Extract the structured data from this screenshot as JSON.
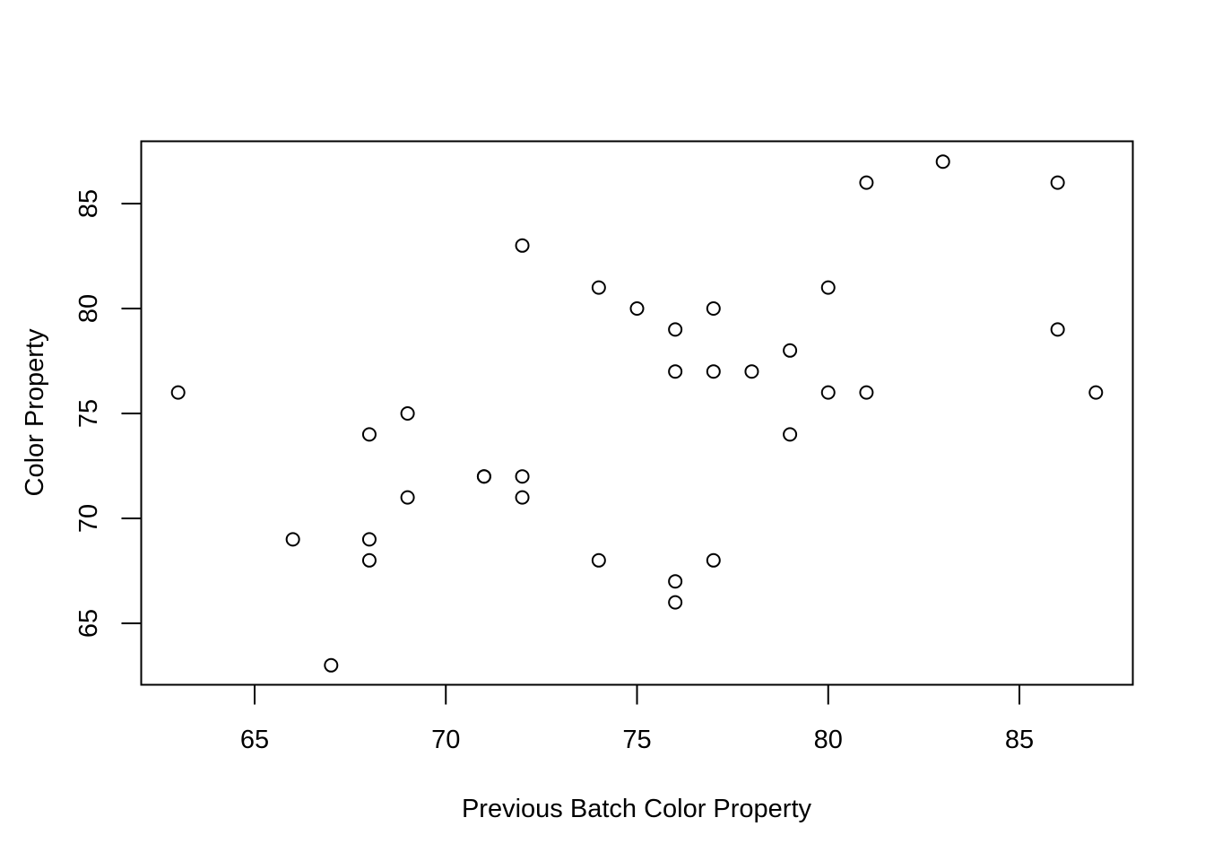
{
  "chart_data": {
    "type": "scatter",
    "title": "",
    "xlabel": "Previous Batch Color Property",
    "ylabel": "Color Property",
    "xlim": [
      62,
      88
    ],
    "ylim": [
      62,
      88
    ],
    "x_ticks": [
      65,
      70,
      75,
      80,
      85
    ],
    "y_ticks": [
      65,
      70,
      75,
      80,
      85
    ],
    "x_tick_labels": [
      "65",
      "70",
      "75",
      "80",
      "85"
    ],
    "y_tick_labels": [
      "65",
      "70",
      "75",
      "80",
      "85"
    ],
    "grid": false,
    "marker": "open-circle",
    "marker_color": "#000000",
    "points": [
      [
        63,
        76
      ],
      [
        66,
        69
      ],
      [
        67,
        63
      ],
      [
        68,
        74
      ],
      [
        68,
        69
      ],
      [
        68,
        68
      ],
      [
        69,
        75
      ],
      [
        69,
        71
      ],
      [
        71,
        72
      ],
      [
        71,
        72
      ],
      [
        72,
        83
      ],
      [
        72,
        72
      ],
      [
        72,
        71
      ],
      [
        74,
        81
      ],
      [
        74,
        68
      ],
      [
        75,
        80
      ],
      [
        76,
        79
      ],
      [
        76,
        77
      ],
      [
        76,
        67
      ],
      [
        76,
        66
      ],
      [
        77,
        80
      ],
      [
        77,
        77
      ],
      [
        77,
        68
      ],
      [
        78,
        77
      ],
      [
        79,
        78
      ],
      [
        79,
        74
      ],
      [
        80,
        81
      ],
      [
        80,
        76
      ],
      [
        81,
        86
      ],
      [
        81,
        76
      ],
      [
        83,
        87
      ],
      [
        86,
        86
      ],
      [
        86,
        79
      ],
      [
        87,
        76
      ]
    ]
  }
}
